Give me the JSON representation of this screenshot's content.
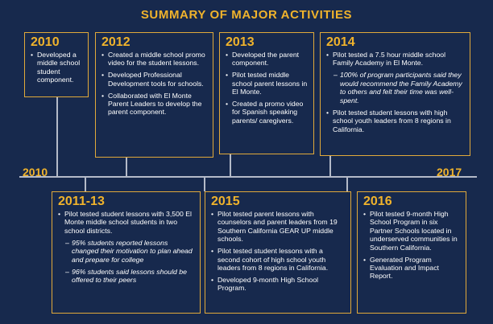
{
  "title": "SUMMARY OF MAJOR ACTIVITIES",
  "axis": {
    "start": "2010",
    "end": "2017"
  },
  "top_boxes": [
    {
      "year": "2010",
      "items": [
        {
          "text": "Developed a middle school student component.",
          "sub": false
        }
      ]
    },
    {
      "year": "2012",
      "items": [
        {
          "text": "Created a middle school promo video for the student lessons.",
          "sub": false
        },
        {
          "text": "Developed Professional Development tools for schools.",
          "sub": false
        },
        {
          "text": "Collaborated with El Monte Parent Leaders to develop the parent component.",
          "sub": false
        }
      ]
    },
    {
      "year": "2013",
      "items": [
        {
          "text": "Developed the parent component.",
          "sub": false
        },
        {
          "text": "Pilot tested middle school parent lessons in El Monte.",
          "sub": false
        },
        {
          "text": "Created a promo video for Spanish speaking parents/ caregivers.",
          "sub": false
        }
      ]
    },
    {
      "year": "2014",
      "items": [
        {
          "text": "Pilot tested a 7.5 hour middle school Family Academy in El Monte.",
          "sub": false
        },
        {
          "text": "100% of program participants said they would recommend the Family Academy to others and felt their time was well-spent.",
          "sub": true
        },
        {
          "text": "Pilot tested student lessons with high school youth leaders from 8 regions in California.",
          "sub": false
        }
      ]
    }
  ],
  "bottom_boxes": [
    {
      "year": "2011-13",
      "items": [
        {
          "text": "Pilot tested student lessons with 3,500 El Monte middle school students in two school districts.",
          "sub": false
        },
        {
          "text": "95% students reported lessons changed their motivation to plan ahead and prepare for college",
          "sub": true
        },
        {
          "text": "96% students said lessons should be offered to their peers",
          "sub": true
        }
      ]
    },
    {
      "year": "2015",
      "items": [
        {
          "text": "Pilot tested parent lessons with counselors and parent leaders from 19 Southern California GEAR UP middle schools.",
          "sub": false
        },
        {
          "text": "Pilot tested student lessons with a second cohort of high school youth leaders from 8 regions in California.",
          "sub": false
        },
        {
          "text": "Developed 9-month High School Program.",
          "sub": false
        }
      ]
    },
    {
      "year": "2016",
      "items": [
        {
          "text": "Pilot tested 9-month High School Program in six Partner Schools located in underserved communities in Southern California.",
          "sub": false
        },
        {
          "text": "Generated Program Evaluation and Impact Report.",
          "sub": false
        }
      ]
    }
  ]
}
